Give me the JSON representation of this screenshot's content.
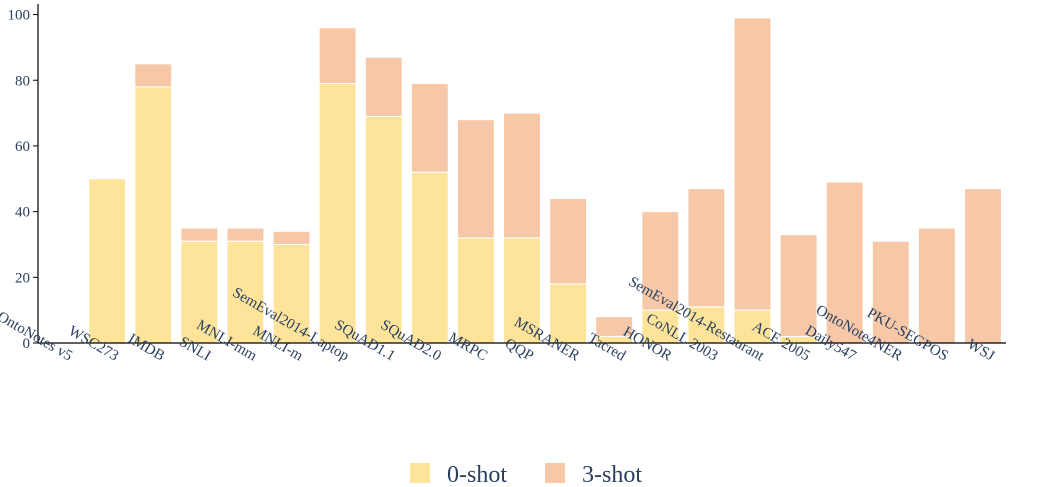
{
  "chart_data": {
    "type": "bar",
    "stacked": true,
    "categories": [
      "OntoNotes v5",
      "WSC273",
      "IMDB",
      "SNLI",
      "MNLI-mm",
      "MNLI-m",
      "SemEval2014-Laptop",
      "SQuAD1.1",
      "SQuAD2.0",
      "MRPC",
      "QQP",
      "MSRANER",
      "Tacred",
      "HONOR",
      "CoNLL 2003",
      "SemEval2014-Restaurant",
      "ACE 2005",
      "Daily547",
      "OntoNote4NER",
      "PKU-SEGPOS",
      "WSJ"
    ],
    "series": [
      {
        "name": "0-shot",
        "color": "#fde49a",
        "values": [
          0,
          50,
          78,
          31,
          31,
          30,
          79,
          69,
          52,
          32,
          32,
          18,
          2,
          10,
          11,
          10,
          2,
          0,
          0,
          0,
          0
        ]
      },
      {
        "name": "3-shot",
        "color": "#f7c8a8",
        "values": [
          0,
          0,
          7,
          4,
          4,
          4,
          17,
          18,
          27,
          36,
          38,
          26,
          6,
          30,
          36,
          89,
          31,
          49,
          31,
          35,
          47
        ]
      }
    ],
    "yticks": [
      0,
      20,
      40,
      60,
      80,
      100
    ],
    "ylim": [
      0,
      102
    ],
    "legend": "bottom-center"
  }
}
